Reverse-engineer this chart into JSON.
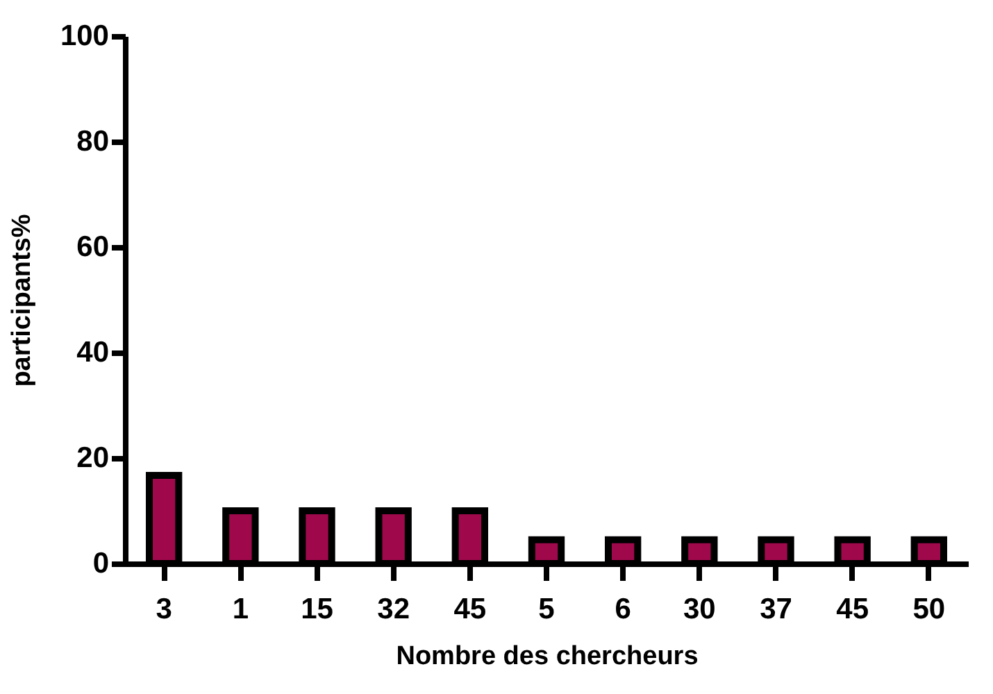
{
  "chart_data": {
    "type": "bar",
    "xlabel": "Nombre des chercheurs",
    "ylabel": "participants%",
    "categories": [
      "3",
      "1",
      "15",
      "32",
      "45",
      "5",
      "6",
      "30",
      "37",
      "45",
      "50"
    ],
    "values": [
      16.7,
      10,
      10,
      10,
      10,
      4.5,
      4.5,
      4.5,
      4.5,
      4.5,
      4.5
    ],
    "color": "#a0084c",
    "ylim": [
      0,
      100
    ],
    "yticks": [
      0,
      20,
      40,
      60,
      80,
      100
    ],
    "grid": false
  }
}
